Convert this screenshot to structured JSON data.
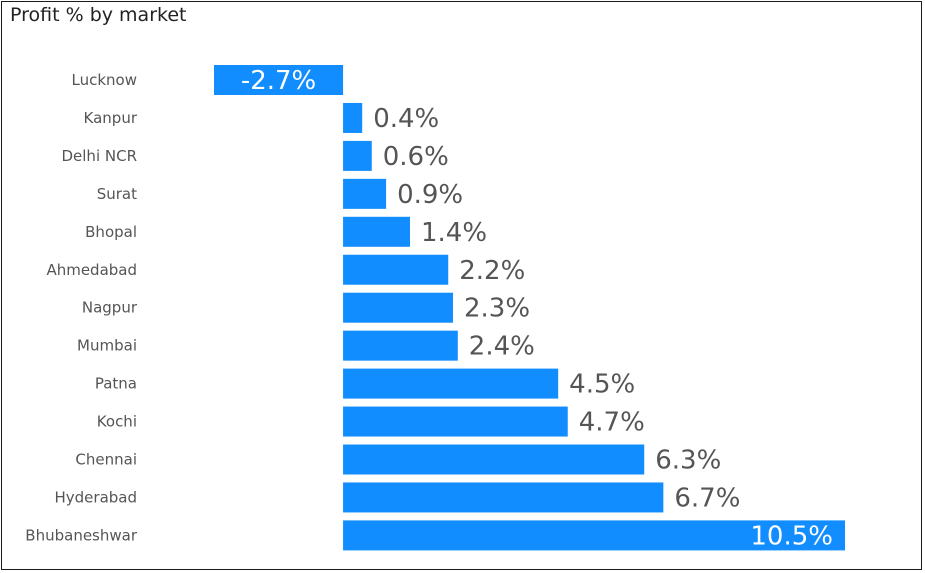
{
  "chart_data": {
    "type": "bar",
    "orientation": "horizontal",
    "title": "Profit % by market",
    "categories": [
      "Lucknow",
      "Kanpur",
      "Delhi NCR",
      "Surat",
      "Bhopal",
      "Ahmedabad",
      "Nagpur",
      "Mumbai",
      "Patna",
      "Kochi",
      "Chennai",
      "Hyderabad",
      "Bhubaneshwar"
    ],
    "values": [
      -2.7,
      0.4,
      0.6,
      0.9,
      1.4,
      2.2,
      2.3,
      2.4,
      4.5,
      4.7,
      6.3,
      6.7,
      10.5
    ],
    "data_labels": [
      "-2.7%",
      "0.4%",
      "0.6%",
      "0.9%",
      "1.4%",
      "2.2%",
      "2.3%",
      "2.4%",
      "4.5%",
      "4.7%",
      "6.3%",
      "6.7%",
      "10.5%"
    ],
    "xlim": [
      -2.7,
      10.5
    ],
    "grid": false,
    "bar_color": "#118DFF",
    "label_color": "#555555"
  }
}
